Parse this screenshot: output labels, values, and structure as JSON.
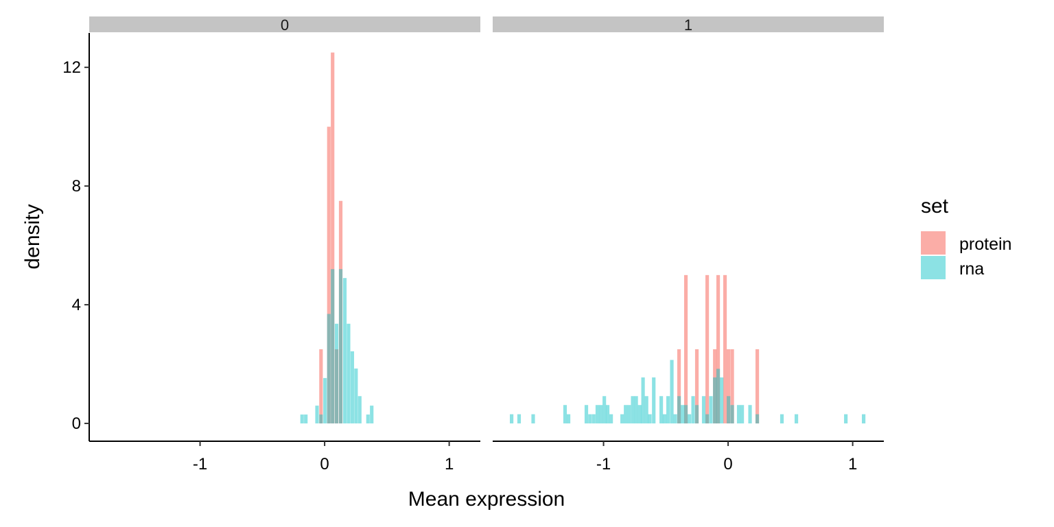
{
  "chart_data": {
    "type": "histogram-faceted",
    "xlabel": "Mean expression",
    "ylabel": "density",
    "xlim": [
      -1.89,
      1.25
    ],
    "ylim": [
      -0.6,
      13.16
    ],
    "x_ticks": [
      -1,
      0,
      1
    ],
    "x_tick_labels": [
      "-1",
      "0",
      "1"
    ],
    "y_ticks": [
      0,
      4,
      8,
      12
    ],
    "y_tick_labels": [
      "0",
      "4",
      "8",
      "12"
    ],
    "bin_width": 0.0285,
    "legend": {
      "title": "set",
      "position": "right",
      "entries": [
        {
          "label": "protein",
          "color": "#F8766D"
        },
        {
          "label": "rna",
          "color": "#00BFC4"
        }
      ]
    },
    "facets": [
      {
        "label": "0",
        "series": [
          {
            "name": "protein",
            "bins": [
              [
                -0.029,
                2.5
              ],
              [
                0.034,
                10
              ],
              [
                0.064,
                12.5
              ],
              [
                0.096,
                2.5
              ],
              [
                0.129,
                7.5
              ]
            ]
          },
          {
            "name": "rna",
            "bins": [
              [
                -0.181,
                0.3
              ],
              [
                -0.151,
                0.3
              ],
              [
                -0.061,
                0.6
              ],
              [
                -0.029,
                0.3
              ],
              [
                0.003,
                1.53
              ],
              [
                0.034,
                3.69
              ],
              [
                0.064,
                5.2
              ],
              [
                0.096,
                3.36
              ],
              [
                0.129,
                5.2
              ],
              [
                0.162,
                4.9
              ],
              [
                0.192,
                3.36
              ],
              [
                0.222,
                2.43
              ],
              [
                0.252,
                1.85
              ],
              [
                0.282,
                0.92
              ],
              [
                0.348,
                0.3
              ],
              [
                0.378,
                0.6
              ]
            ]
          }
        ]
      },
      {
        "label": "1",
        "series": [
          {
            "name": "protein",
            "bins": [
              [
                -0.394,
                2.5
              ],
              [
                -0.339,
                5
              ],
              [
                -0.251,
                2.5
              ],
              [
                -0.168,
                5
              ],
              [
                -0.107,
                2.5
              ],
              [
                -0.08,
                5
              ],
              [
                -0.025,
                5
              ],
              [
                0.003,
                2.5
              ],
              [
                0.033,
                2.5
              ],
              [
                0.234,
                2.5
              ]
            ]
          },
          {
            "name": "rna",
            "bins": [
              [
                -1.738,
                0.31
              ],
              [
                -1.678,
                0.31
              ],
              [
                -1.565,
                0.31
              ],
              [
                -1.309,
                0.62
              ],
              [
                -1.281,
                0.31
              ],
              [
                -1.138,
                0.62
              ],
              [
                -1.109,
                0.31
              ],
              [
                -1.079,
                0.31
              ],
              [
                -1.05,
                0.62
              ],
              [
                -1.022,
                0.62
              ],
              [
                -0.994,
                0.92
              ],
              [
                -0.967,
                0.62
              ],
              [
                -0.939,
                0.31
              ],
              [
                -0.851,
                0.31
              ],
              [
                -0.823,
                0.62
              ],
              [
                -0.795,
                0.62
              ],
              [
                -0.766,
                0.92
              ],
              [
                -0.738,
                0.92
              ],
              [
                -0.71,
                0.62
              ],
              [
                -0.683,
                1.55
              ],
              [
                -0.655,
                0.92
              ],
              [
                -0.628,
                0.31
              ],
              [
                -0.597,
                1.55
              ],
              [
                -0.537,
                0.92
              ],
              [
                -0.51,
                0.31
              ],
              [
                -0.482,
                0.92
              ],
              [
                -0.452,
                2.14
              ],
              [
                -0.424,
                0.31
              ],
              [
                -0.394,
                0.92
              ],
              [
                -0.366,
                0.62
              ],
              [
                -0.339,
                0.62
              ],
              [
                -0.311,
                0.31
              ],
              [
                -0.281,
                0.92
              ],
              [
                -0.251,
                0.62
              ],
              [
                -0.196,
                0.92
              ],
              [
                -0.168,
                0.31
              ],
              [
                -0.138,
                0.92
              ],
              [
                -0.107,
                1.55
              ],
              [
                -0.08,
                1.84
              ],
              [
                -0.052,
                1.55
              ],
              [
                0.003,
                0.92
              ],
              [
                0.033,
                0.62
              ],
              [
                0.085,
                0.62
              ],
              [
                0.113,
                0.62
              ],
              [
                0.176,
                0.62
              ],
              [
                0.234,
                0.31
              ],
              [
                0.432,
                0.31
              ],
              [
                0.548,
                0.31
              ],
              [
                0.945,
                0.31
              ],
              [
                1.088,
                0.31
              ]
            ]
          }
        ]
      }
    ]
  }
}
